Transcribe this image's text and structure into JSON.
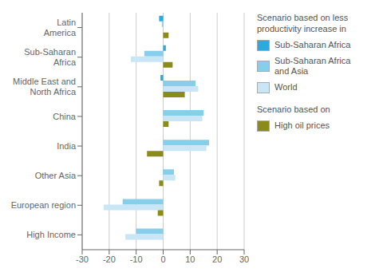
{
  "chart_data": {
    "type": "bar",
    "orientation": "horizontal",
    "categories": [
      "Latin\nAmerica",
      "Sub-Saharan\nAfrica",
      "Middle East and\nNorth Africa",
      "China",
      "India",
      "Other Asia",
      "European region",
      "High Income"
    ],
    "series": [
      {
        "name": "Sub-Saharan Africa",
        "color": "#29ABE2",
        "values": [
          -1.5,
          1.0,
          -1.0,
          0.0,
          0.0,
          0.0,
          0.0,
          0.0
        ]
      },
      {
        "name": "Sub-Saharan Africa\nand Asia",
        "color": "#87CEEB",
        "values": [
          -0.5,
          -7.0,
          12.0,
          15.0,
          17.0,
          4.0,
          -15.0,
          -10.0
        ]
      },
      {
        "name": "World",
        "color": "#C8E6F5",
        "values": [
          0.0,
          -12.0,
          13.0,
          14.5,
          16.0,
          4.5,
          -22.0,
          -14.0
        ]
      },
      {
        "name": "High oil prices",
        "color": "#8B8B1A",
        "values": [
          2.0,
          3.5,
          8.0,
          2.0,
          -6.0,
          -1.5,
          -2.0,
          0.0
        ]
      }
    ],
    "annotations": [
      "Scenario based on less\nproductivity increase in",
      "Scenario based on"
    ],
    "xlim": [
      -30,
      30
    ],
    "xticks": [
      -30,
      -20,
      -10,
      0,
      10,
      20,
      30
    ],
    "grid": true,
    "legend": "right"
  }
}
